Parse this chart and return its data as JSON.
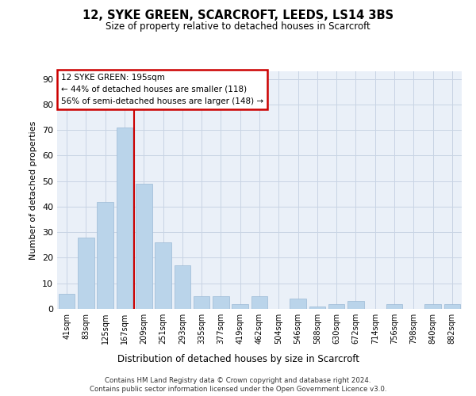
{
  "title1": "12, SYKE GREEN, SCARCROFT, LEEDS, LS14 3BS",
  "title2": "Size of property relative to detached houses in Scarcroft",
  "xlabel": "Distribution of detached houses by size in Scarcroft",
  "ylabel": "Number of detached properties",
  "categories": [
    "41sqm",
    "83sqm",
    "125sqm",
    "167sqm",
    "209sqm",
    "251sqm",
    "293sqm",
    "335sqm",
    "377sqm",
    "419sqm",
    "462sqm",
    "504sqm",
    "546sqm",
    "588sqm",
    "630sqm",
    "672sqm",
    "714sqm",
    "756sqm",
    "798sqm",
    "840sqm",
    "882sqm"
  ],
  "values": [
    6,
    28,
    42,
    71,
    49,
    26,
    17,
    5,
    5,
    2,
    5,
    0,
    4,
    1,
    2,
    3,
    0,
    2,
    0,
    2,
    2
  ],
  "bar_color": "#bad4ea",
  "bar_edge_color": "#9bbad6",
  "grid_color": "#c8d4e4",
  "bg_color": "#eaf0f8",
  "vline_color": "#cc0000",
  "box_text_line1": "12 SYKE GREEN: 195sqm",
  "box_text_line2": "← 44% of detached houses are smaller (118)",
  "box_text_line3": "56% of semi-detached houses are larger (148) →",
  "box_edge_color": "#cc0000",
  "footnote1": "Contains HM Land Registry data © Crown copyright and database right 2024.",
  "footnote2": "Contains public sector information licensed under the Open Government Licence v3.0.",
  "ylim": [
    0,
    93
  ],
  "yticks": [
    0,
    10,
    20,
    30,
    40,
    50,
    60,
    70,
    80,
    90
  ],
  "vline_pos": 3.5
}
